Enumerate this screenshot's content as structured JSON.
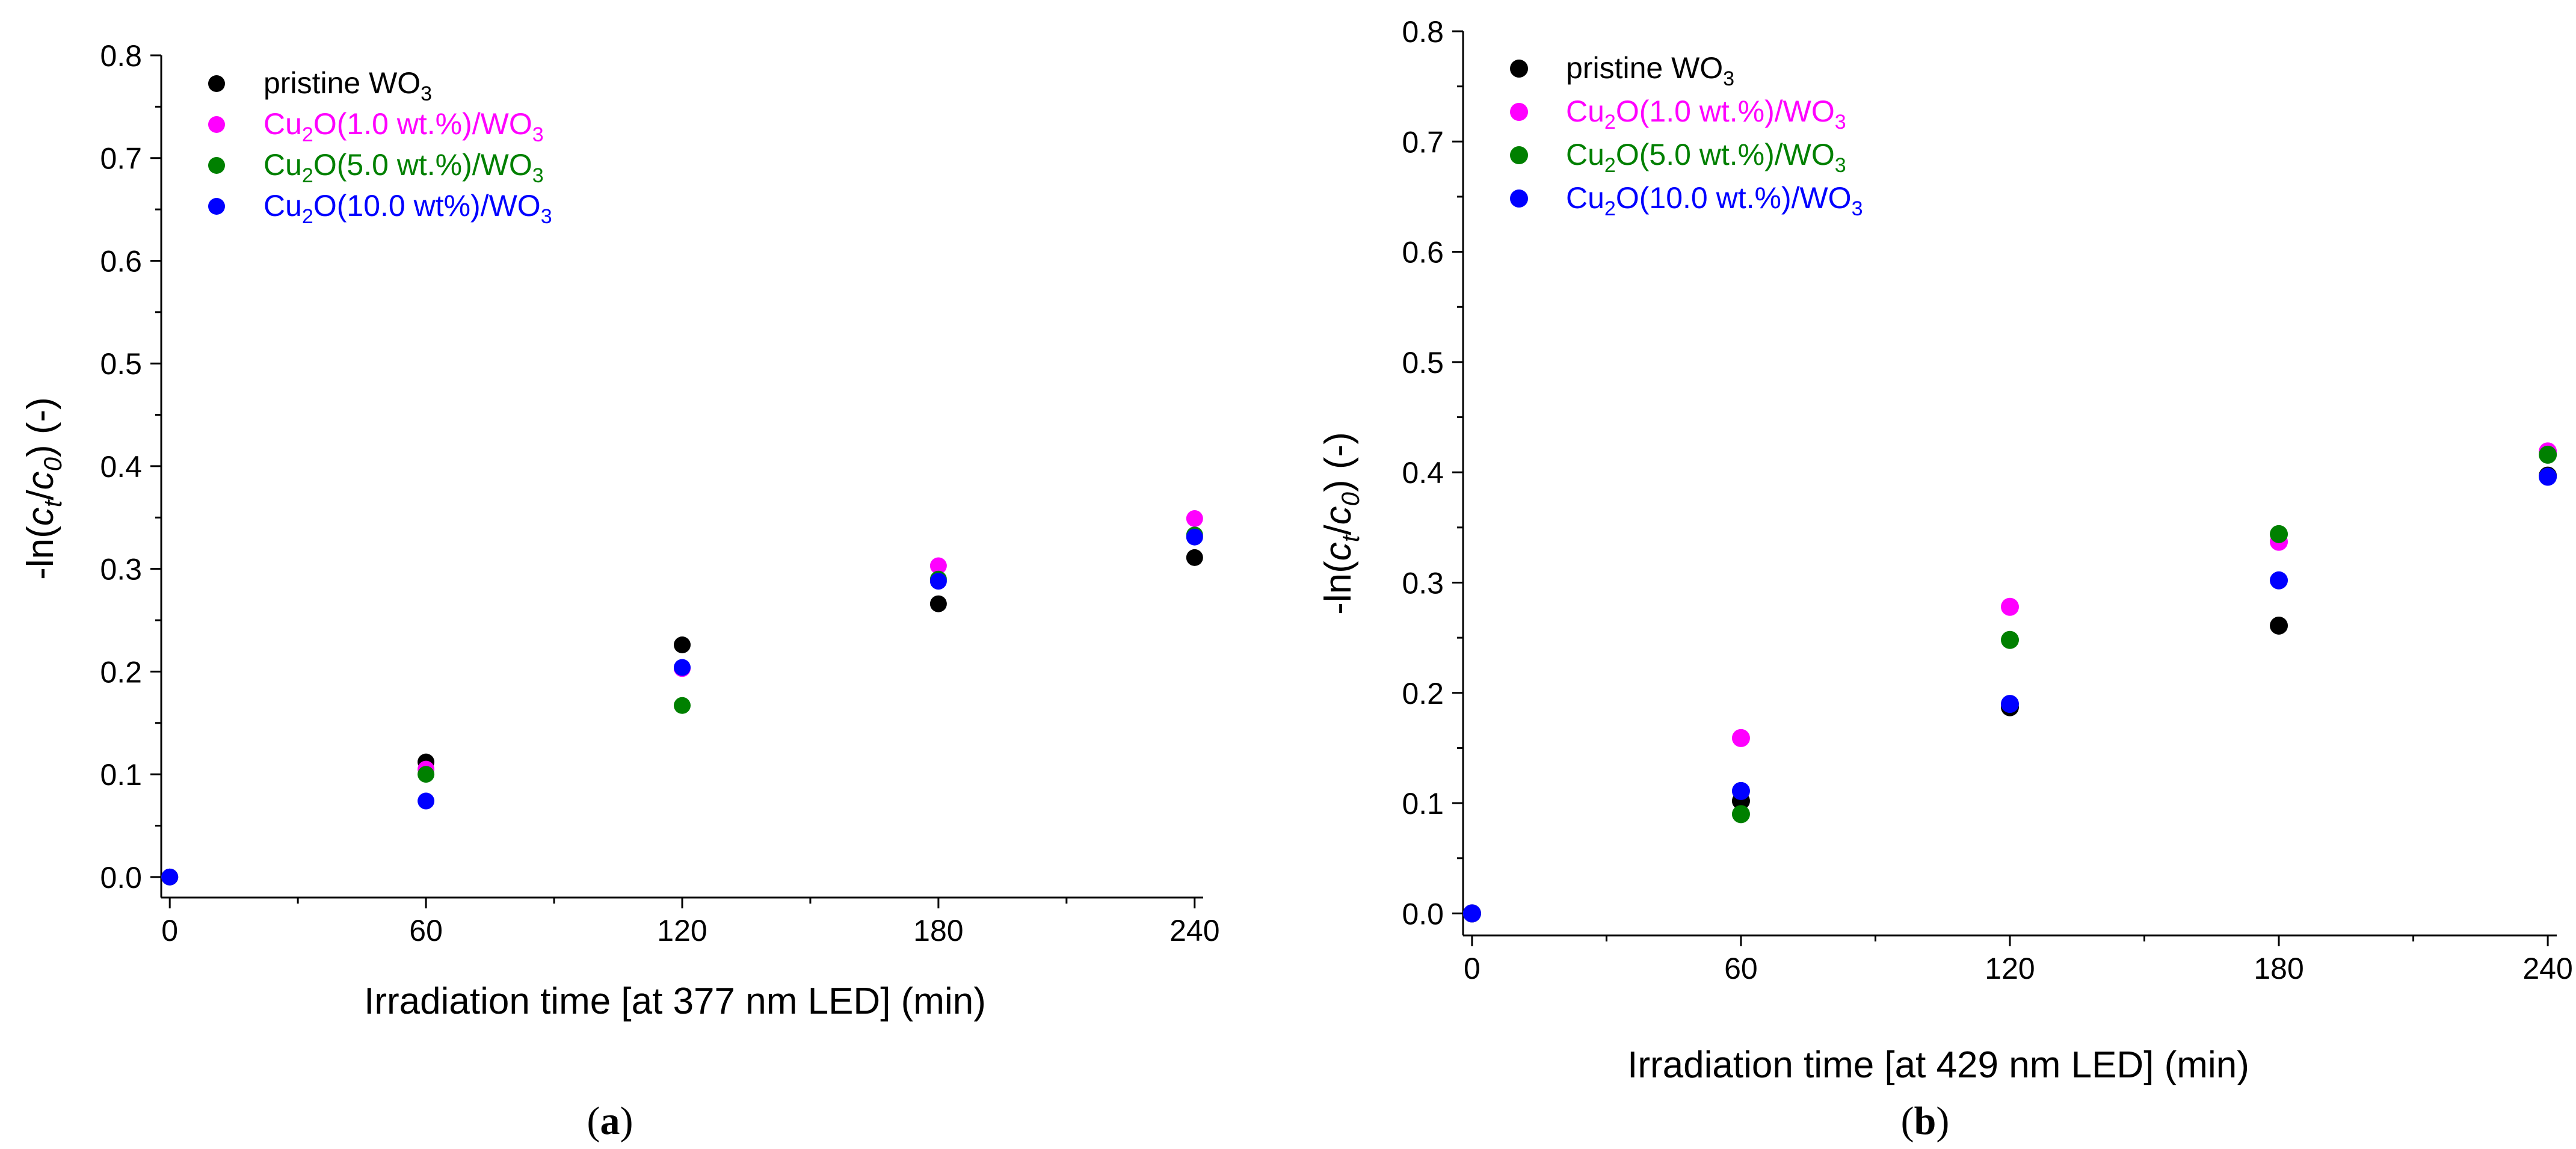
{
  "chart_data": [
    {
      "type": "scatter",
      "panel_label": "a",
      "xlabel": "Irradiation time [at 377 nm LED] (min)",
      "ylabel": {
        "prefix": "-ln(",
        "c1": "c",
        "s1": "t",
        "mid": "/",
        "c2": "c",
        "s2": "0",
        "suffix": ") (-)"
      },
      "xlim": [
        -2,
        242
      ],
      "ylim": [
        -0.02,
        0.8
      ],
      "xticks": [
        0,
        60,
        120,
        180,
        240
      ],
      "yticks": [
        0.0,
        0.1,
        0.2,
        0.3,
        0.4,
        0.5,
        0.6,
        0.7,
        0.8
      ],
      "legend_position": "top-left",
      "grid": false,
      "series": [
        {
          "name": "pristine WO3",
          "label_parts": [
            {
              "t": "pristine WO"
            },
            {
              "t": "3",
              "sub": true
            }
          ],
          "color": "#000000",
          "x": [
            0,
            60,
            120,
            180,
            240
          ],
          "y": [
            0.0,
            0.112,
            0.226,
            0.266,
            0.311
          ]
        },
        {
          "name": "Cu2O(1.0 wt.%)/WO3",
          "label_parts": [
            {
              "t": "Cu"
            },
            {
              "t": "2",
              "sub": true
            },
            {
              "t": "O(1.0 wt.%)/WO"
            },
            {
              "t": "3",
              "sub": true
            }
          ],
          "color": "#ff00ff",
          "x": [
            0,
            60,
            120,
            180,
            240
          ],
          "y": [
            0.0,
            0.105,
            0.203,
            0.303,
            0.349
          ]
        },
        {
          "name": "Cu2O(5.0 wt.%)/WO3",
          "label_parts": [
            {
              "t": "Cu"
            },
            {
              "t": "2",
              "sub": true
            },
            {
              "t": "O(5.0 wt.%)/WO"
            },
            {
              "t": "3",
              "sub": true
            }
          ],
          "color": "#008000",
          "x": [
            0,
            60,
            120,
            180,
            240
          ],
          "y": [
            0.0,
            0.1,
            0.167,
            0.29,
            0.333
          ]
        },
        {
          "name": "Cu2O(10.0 wt%)/WO3",
          "label_parts": [
            {
              "t": "Cu"
            },
            {
              "t": "2",
              "sub": true
            },
            {
              "t": "O(10.0 wt%)/WO"
            },
            {
              "t": "3",
              "sub": true
            }
          ],
          "color": "#0000ff",
          "x": [
            0,
            60,
            120,
            180,
            240
          ],
          "y": [
            0.0,
            0.074,
            0.204,
            0.288,
            0.331
          ]
        }
      ]
    },
    {
      "type": "scatter",
      "panel_label": "b",
      "xlabel": "Irradiation time [at 429 nm LED] (min)",
      "ylabel": {
        "prefix": "-ln(",
        "c1": "c",
        "s1": "t",
        "mid": "/",
        "c2": "c",
        "s2": "0",
        "suffix": ") (-)"
      },
      "xlim": [
        -2,
        242
      ],
      "ylim": [
        -0.02,
        0.8
      ],
      "xticks": [
        0,
        60,
        120,
        180,
        240
      ],
      "yticks": [
        0.0,
        0.1,
        0.2,
        0.3,
        0.4,
        0.5,
        0.6,
        0.7,
        0.8
      ],
      "legend_position": "top-left",
      "grid": false,
      "series": [
        {
          "name": "pristine WO3",
          "label_parts": [
            {
              "t": "pristine WO"
            },
            {
              "t": "3",
              "sub": true
            }
          ],
          "color": "#000000",
          "x": [
            0,
            60,
            120,
            180,
            240
          ],
          "y": [
            0.0,
            0.102,
            0.187,
            0.261,
            0.397
          ]
        },
        {
          "name": "Cu2O(1.0 wt.%)/WO3",
          "label_parts": [
            {
              "t": "Cu"
            },
            {
              "t": "2",
              "sub": true
            },
            {
              "t": "O(1.0 wt.%)/WO"
            },
            {
              "t": "3",
              "sub": true
            }
          ],
          "color": "#ff00ff",
          "x": [
            0,
            60,
            120,
            180,
            240
          ],
          "y": [
            0.0,
            0.159,
            0.278,
            0.337,
            0.419
          ]
        },
        {
          "name": "Cu2O(5.0 wt.%)/WO3",
          "label_parts": [
            {
              "t": "Cu"
            },
            {
              "t": "2",
              "sub": true
            },
            {
              "t": "O(5.0 wt.%)/WO"
            },
            {
              "t": "3",
              "sub": true
            }
          ],
          "color": "#008000",
          "x": [
            0,
            60,
            120,
            180,
            240
          ],
          "y": [
            0.0,
            0.09,
            0.248,
            0.344,
            0.416
          ]
        },
        {
          "name": "Cu2O(10.0 wt.%)/WO3",
          "label_parts": [
            {
              "t": "Cu"
            },
            {
              "t": "2",
              "sub": true
            },
            {
              "t": "O(10.0 wt.%)/WO"
            },
            {
              "t": "3",
              "sub": true
            }
          ],
          "color": "#0000ff",
          "x": [
            0,
            60,
            120,
            180,
            240
          ],
          "y": [
            0.0,
            0.111,
            0.19,
            0.302,
            0.396
          ]
        }
      ]
    }
  ]
}
